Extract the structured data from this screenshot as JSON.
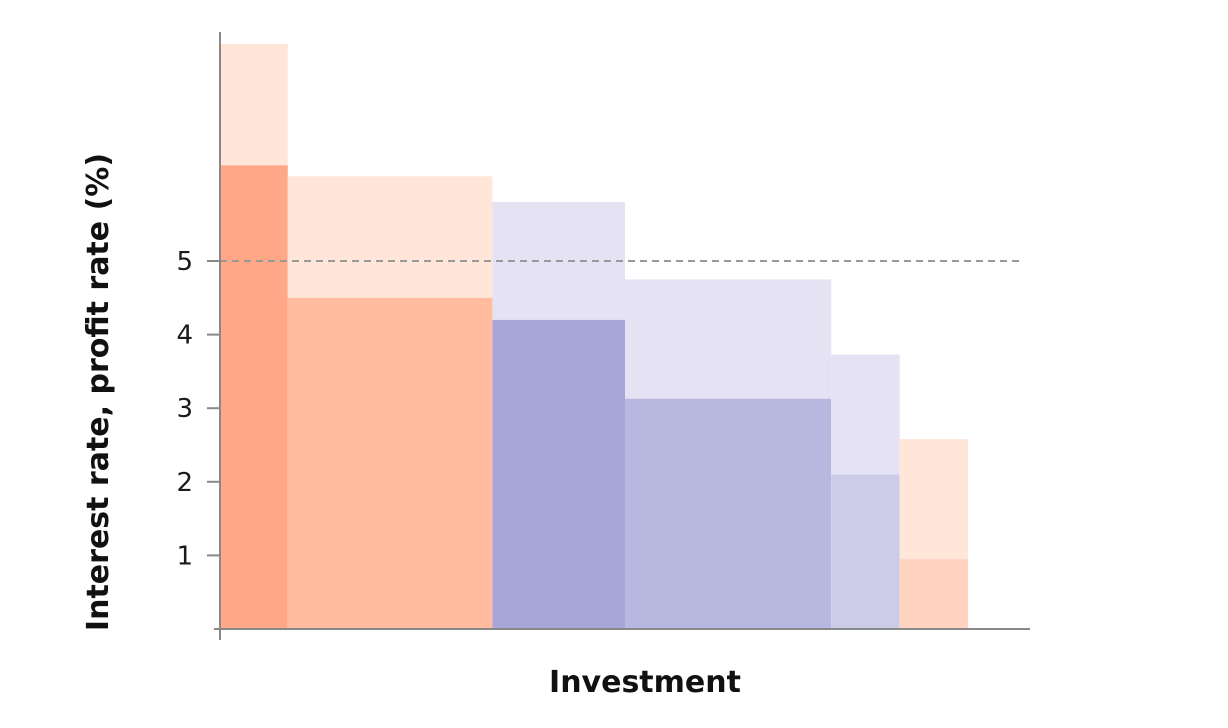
{
  "chart_data": {
    "type": "bar",
    "subtype": "variable-width stacked bars (investment opportunities ranked by profit rate)",
    "xlabel": "Investment",
    "ylabel": "Interest rate, profit rate (%)",
    "yticks": [
      1,
      2,
      3,
      4,
      5
    ],
    "ylim": [
      0,
      8
    ],
    "xlim": [
      0,
      11
    ],
    "reference_line": {
      "y": 5,
      "style": "dashed",
      "color": "#999999"
    },
    "grid": false,
    "legend": "none",
    "bars": [
      {
        "x_start": 0.0,
        "x_end": 0.92,
        "lower": 6.3,
        "upper": 7.95,
        "lower_color": "#ffa787",
        "upper_color": "#ffe6d9"
      },
      {
        "x_start": 0.92,
        "x_end": 3.7,
        "lower": 4.5,
        "upper": 6.15,
        "lower_color": "#ffbc9f",
        "upper_color": "#ffe6d9"
      },
      {
        "x_start": 3.7,
        "x_end": 5.5,
        "lower": 4.2,
        "upper": 5.8,
        "lower_color": "#a8a5d8",
        "upper_color": "#e5e2f3"
      },
      {
        "x_start": 5.5,
        "x_end": 8.3,
        "lower": 3.13,
        "upper": 4.75,
        "lower_color": "#b8b7e0",
        "upper_color": "#e5e2f3"
      },
      {
        "x_start": 8.3,
        "x_end": 9.23,
        "lower": 2.1,
        "upper": 3.73,
        "lower_color": "#cccce9",
        "upper_color": "#e5e2f3"
      },
      {
        "x_start": 9.23,
        "x_end": 10.16,
        "lower": 0.95,
        "upper": 2.58,
        "lower_color": "#ffd3bf",
        "upper_color": "#ffe6d9"
      }
    ]
  }
}
